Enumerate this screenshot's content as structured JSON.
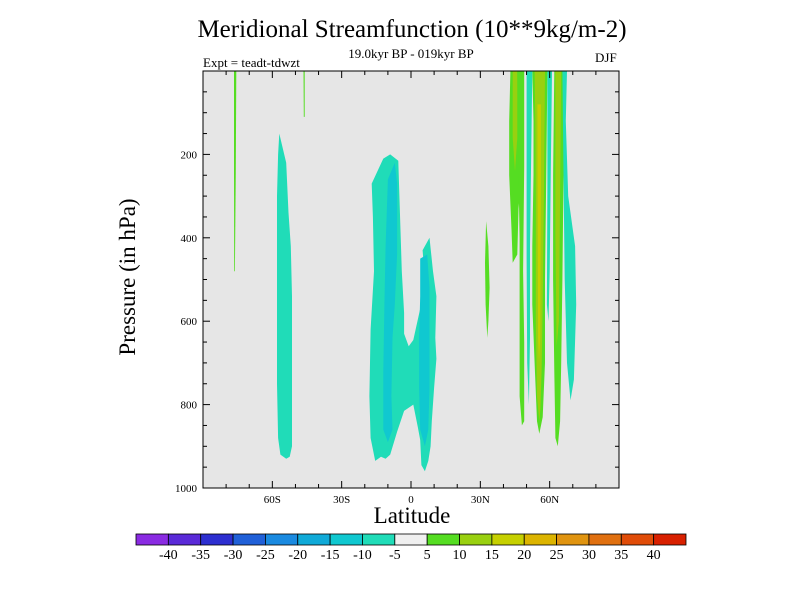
{
  "chart_data": {
    "type": "heatmap",
    "title": "Meridional Streamfunction (10**9kg/m-2)",
    "subtitle": "19.0kyr BP - 019kyr BP",
    "left_label": "Expt = teadt-tdwzt",
    "right_label": "DJF",
    "xlabel": "Latitude",
    "ylabel": "Pressure (in hPa)",
    "x_range": [
      -90,
      90
    ],
    "y_range": [
      0,
      1000
    ],
    "y_inverted": true,
    "x_ticks": [
      {
        "value": -60,
        "label": "60S"
      },
      {
        "value": -30,
        "label": "30S"
      },
      {
        "value": 0,
        "label": "0"
      },
      {
        "value": 30,
        "label": "30N"
      },
      {
        "value": 60,
        "label": "60N"
      }
    ],
    "y_ticks": [
      {
        "value": 200,
        "label": "200"
      },
      {
        "value": 400,
        "label": "400"
      },
      {
        "value": 600,
        "label": "600"
      },
      {
        "value": 800,
        "label": "800"
      },
      {
        "value": 1000,
        "label": "1000"
      }
    ],
    "background_color": "#e6e6e6",
    "colorbar": {
      "levels": [
        "-40",
        "-35",
        "-30",
        "-25",
        "-20",
        "-15",
        "-10",
        "-5",
        "5",
        "10",
        "15",
        "20",
        "25",
        "30",
        "35",
        "40"
      ],
      "colors": [
        "#8a2be2",
        "#5a2ad8",
        "#2d2fd0",
        "#2060d8",
        "#1a8ae0",
        "#10aad8",
        "#10c8d0",
        "#20dcb8",
        "#f0f0f0",
        "#55dd22",
        "#99d010",
        "#c6d000",
        "#dcb400",
        "#e09410",
        "#e07010",
        "#e04c08",
        "#d82000"
      ]
    },
    "regions": [
      {
        "name": "sh-midlat-negative",
        "fill": "#20dcb8",
        "value_range": [
          -10,
          -5
        ],
        "outline": [
          [
            -57,
            150
          ],
          [
            -54,
            220
          ],
          [
            -53,
            340
          ],
          [
            -52,
            420
          ],
          [
            -51.5,
            540
          ],
          [
            -51.5,
            680
          ],
          [
            -51.5,
            820
          ],
          [
            -51.5,
            900
          ],
          [
            -52.5,
            925
          ],
          [
            -54,
            930
          ],
          [
            -56.5,
            920
          ],
          [
            -57.5,
            880
          ],
          [
            -58,
            750
          ],
          [
            -58,
            600
          ],
          [
            -58,
            450
          ],
          [
            -58,
            300
          ],
          [
            -57.5,
            200
          ]
        ]
      },
      {
        "name": "tropics-negative-outer",
        "fill": "#20dcb8",
        "value_range": [
          -10,
          -5
        ],
        "outline": [
          [
            -17,
            270
          ],
          [
            -12,
            210
          ],
          [
            -9,
            200
          ],
          [
            -5.5,
            215
          ],
          [
            -5,
            300
          ],
          [
            -4,
            480
          ],
          [
            -3,
            580
          ],
          [
            -3,
            630
          ],
          [
            -1,
            660
          ],
          [
            1,
            645
          ],
          [
            4,
            570
          ],
          [
            6,
            500
          ],
          [
            5,
            430
          ],
          [
            8,
            400
          ],
          [
            9.5,
            480
          ],
          [
            11,
            540
          ],
          [
            10.5,
            640
          ],
          [
            11,
            690
          ],
          [
            10,
            760
          ],
          [
            9,
            840
          ],
          [
            8.5,
            900
          ],
          [
            7.5,
            935
          ],
          [
            6,
            960
          ],
          [
            4.5,
            945
          ],
          [
            4,
            885
          ],
          [
            3,
            855
          ],
          [
            1,
            800
          ],
          [
            -3,
            815
          ],
          [
            -6,
            865
          ],
          [
            -9,
            920
          ],
          [
            -11,
            930
          ],
          [
            -13,
            925
          ],
          [
            -15.5,
            935
          ],
          [
            -17.5,
            880
          ],
          [
            -18,
            780
          ],
          [
            -17.5,
            620
          ],
          [
            -16,
            480
          ],
          [
            -16.5,
            350
          ]
        ]
      },
      {
        "name": "tropics-negative-inner-west",
        "fill": "#10c8d0",
        "value_range": [
          -15,
          -10
        ],
        "outline": [
          [
            -10,
            260
          ],
          [
            -7,
            220
          ],
          [
            -6,
            270
          ],
          [
            -6,
            440
          ],
          [
            -7,
            560
          ],
          [
            -8,
            640
          ],
          [
            -8.5,
            780
          ],
          [
            -8,
            860
          ],
          [
            -10,
            890
          ],
          [
            -12,
            860
          ],
          [
            -12,
            720
          ],
          [
            -11.5,
            560
          ],
          [
            -11,
            420
          ]
        ]
      },
      {
        "name": "tropics-negative-inner-east",
        "fill": "#10c8d0",
        "value_range": [
          -15,
          -10
        ],
        "outline": [
          [
            4,
            450
          ],
          [
            7,
            440
          ],
          [
            8,
            520
          ],
          [
            8,
            640
          ],
          [
            8,
            760
          ],
          [
            7.5,
            860
          ],
          [
            6,
            900
          ],
          [
            4,
            860
          ],
          [
            3.5,
            760
          ],
          [
            3.5,
            640
          ],
          [
            4,
            540
          ]
        ]
      },
      {
        "name": "nh-band-1",
        "fill": "#55dd22",
        "value_range": [
          5,
          10
        ],
        "outline": [
          [
            43,
            0
          ],
          [
            47,
            0
          ],
          [
            47,
            120
          ],
          [
            48,
            240
          ],
          [
            46.5,
            330
          ],
          [
            46,
            440
          ],
          [
            44,
            460
          ],
          [
            43.5,
            380
          ],
          [
            42.5,
            250
          ],
          [
            42.5,
            120
          ]
        ]
      },
      {
        "name": "nh-band-1-core",
        "fill": "#99d010",
        "value_range": [
          10,
          15
        ],
        "outline": [
          [
            44,
            0
          ],
          [
            46,
            0
          ],
          [
            46,
            160
          ],
          [
            45,
            240
          ],
          [
            44,
            160
          ]
        ]
      },
      {
        "name": "nh-band-2",
        "fill": "#55dd22",
        "value_range": [
          5,
          10
        ],
        "outline": [
          [
            46,
            0
          ],
          [
            49,
            0
          ],
          [
            49,
            230
          ],
          [
            48.5,
            480
          ],
          [
            49,
            650
          ],
          [
            49,
            760
          ],
          [
            49,
            840
          ],
          [
            48,
            850
          ],
          [
            47,
            780
          ],
          [
            47,
            620
          ],
          [
            47,
            400
          ],
          [
            46.5,
            250
          ]
        ]
      },
      {
        "name": "nh-band-3",
        "fill": "#55dd22",
        "value_range": [
          5,
          10
        ],
        "outline": [
          [
            52.5,
            0
          ],
          [
            59,
            0
          ],
          [
            58.5,
            260
          ],
          [
            58,
            500
          ],
          [
            58,
            700
          ],
          [
            57,
            830
          ],
          [
            55.5,
            870
          ],
          [
            54.5,
            840
          ],
          [
            53.5,
            700
          ],
          [
            52.5,
            560
          ],
          [
            52.5,
            420
          ],
          [
            53,
            250
          ],
          [
            53,
            120
          ]
        ]
      },
      {
        "name": "nh-band-3-core",
        "fill": "#99d010",
        "value_range": [
          10,
          15
        ],
        "outline": [
          [
            53.5,
            0
          ],
          [
            58,
            0
          ],
          [
            57.5,
            300
          ],
          [
            57,
            560
          ],
          [
            56.5,
            720
          ],
          [
            56,
            810
          ],
          [
            55.5,
            840
          ],
          [
            54.5,
            780
          ],
          [
            54,
            600
          ],
          [
            54,
            300
          ],
          [
            53.8,
            120
          ]
        ]
      },
      {
        "name": "nh-band-3-max",
        "fill": "#c6d000",
        "value_range": [
          15,
          20
        ],
        "outline": [
          [
            54.7,
            80
          ],
          [
            56.2,
            80
          ],
          [
            56.2,
            280
          ],
          [
            55.9,
            640
          ],
          [
            55.4,
            700
          ],
          [
            55,
            640
          ],
          [
            54.8,
            300
          ]
        ]
      },
      {
        "name": "nh-band-4",
        "fill": "#55dd22",
        "value_range": [
          5,
          10
        ],
        "outline": [
          [
            62,
            0
          ],
          [
            66.5,
            0
          ],
          [
            66,
            250
          ],
          [
            65.5,
            500
          ],
          [
            65,
            700
          ],
          [
            64.5,
            840
          ],
          [
            63.5,
            900
          ],
          [
            62.5,
            880
          ],
          [
            62,
            720
          ],
          [
            61.5,
            500
          ],
          [
            61.5,
            250
          ]
        ]
      },
      {
        "name": "nh-band-4-core",
        "fill": "#99d010",
        "value_range": [
          10,
          15
        ],
        "outline": [
          [
            62.5,
            0
          ],
          [
            65,
            0
          ],
          [
            64.5,
            300
          ],
          [
            64,
            600
          ],
          [
            63,
            660
          ],
          [
            62.5,
            400
          ]
        ]
      },
      {
        "name": "nh-band-4-negative-edge",
        "fill": "#20dcb8",
        "value_range": [
          -10,
          -5
        ],
        "outline": [
          [
            65.5,
            0
          ],
          [
            67.5,
            0
          ],
          [
            67,
            120
          ],
          [
            68,
            300
          ],
          [
            71,
            420
          ],
          [
            71.5,
            560
          ],
          [
            70.5,
            740
          ],
          [
            69,
            790
          ],
          [
            67.5,
            700
          ],
          [
            66.5,
            500
          ],
          [
            66,
            250
          ]
        ]
      },
      {
        "name": "nh-band-3-negative-edge",
        "fill": "#20dcb8",
        "value_range": [
          -10,
          -5
        ],
        "outline": [
          [
            59,
            0
          ],
          [
            61,
            0
          ],
          [
            60.5,
            240
          ],
          [
            60,
            480
          ],
          [
            59.5,
            600
          ],
          [
            58.8,
            560
          ],
          [
            59,
            260
          ]
        ]
      },
      {
        "name": "nh-band-3-negative-west",
        "fill": "#20dcb8",
        "value_range": [
          -10,
          -5
        ],
        "outline": [
          [
            50,
            0
          ],
          [
            52.5,
            0
          ],
          [
            52,
            200
          ],
          [
            51.5,
            420
          ],
          [
            51.5,
            640
          ],
          [
            51,
            800
          ],
          [
            50.3,
            700
          ],
          [
            50,
            450
          ],
          [
            50,
            200
          ]
        ]
      },
      {
        "name": "nh-subtropics-positive",
        "fill": "#55dd22",
        "value_range": [
          5,
          10
        ],
        "outline": [
          [
            32.5,
            360
          ],
          [
            33.5,
            420
          ],
          [
            34,
            520
          ],
          [
            33.5,
            600
          ],
          [
            33,
            640
          ],
          [
            32.3,
            560
          ],
          [
            32,
            460
          ]
        ]
      },
      {
        "name": "sh-polar-streak",
        "fill": "#55dd22",
        "value_range": [
          5,
          10
        ],
        "outline": [
          [
            -76.6,
            0
          ],
          [
            -75.6,
            0
          ],
          [
            -75.8,
            240
          ],
          [
            -76.2,
            480
          ],
          [
            -76.5,
            480
          ],
          [
            -76.6,
            240
          ]
        ]
      },
      {
        "name": "sh-polar-streak-2",
        "fill": "#55dd22",
        "value_range": [
          5,
          10
        ],
        "outline": [
          [
            -46.5,
            0
          ],
          [
            -46,
            0
          ],
          [
            -46,
            110
          ],
          [
            -46.4,
            110
          ]
        ]
      }
    ]
  }
}
